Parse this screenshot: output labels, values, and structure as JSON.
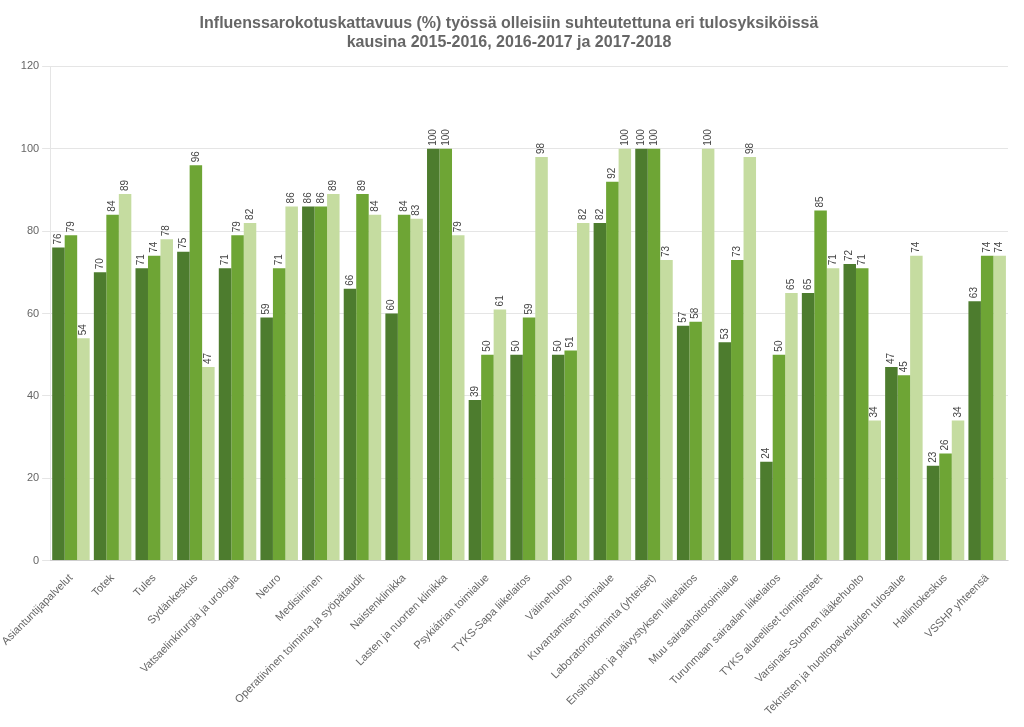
{
  "chart_data": {
    "type": "bar",
    "title": "Influenssarokotuskattavuus (%) työssä olleisiin suhteutettuna eri tulosyksiköissä\nkausina 2015-2016, 2016-2017 ja 2017-2018",
    "categories": [
      "Asiantuntijapalvelut",
      "Totek",
      "Tules",
      "Sydänkeskus",
      "Vatsaelinkirurgia ja urologia",
      "Neuro",
      "Medisiininen",
      "Operatiivinen toiminta ja syöpätaudit",
      "Naistenklinikka",
      "Lasten ja nuorten klinikka",
      "Psykiátrian toimialue",
      "TYKS-Sapa liikelaitos",
      "Välinehuolto",
      "Kuvantamisen toimialue",
      "Laboratoriotoiminta (yhteiset)",
      "Ensihoidon ja päivystyksen liikelaitos",
      "Muu sairaahoitotoimialue",
      "Turunmaan sairaalan liikelaitos",
      "TYKS alueelliset toimipisteet",
      "Varsinais-Suomen lääkehuolto",
      "Teknisten ja huoltopalveluiden tulosalue",
      "Hallintokeskus",
      "VSSHP yhteensä"
    ],
    "series": [
      {
        "color": "#4d7c2e",
        "values": [
          76,
          70,
          71,
          75,
          71,
          59,
          86,
          66,
          60,
          100,
          39,
          50,
          50,
          82,
          100,
          57,
          53,
          24,
          65,
          72,
          47,
          23,
          63
        ]
      },
      {
        "color": "#6ea535",
        "values": [
          79,
          84,
          74,
          96,
          79,
          71,
          86,
          89,
          84,
          100,
          50,
          59,
          51,
          92,
          100,
          58,
          73,
          50,
          85,
          71,
          45,
          26,
          74
        ]
      },
      {
        "color": "#c5dcA0",
        "values": [
          54,
          89,
          78,
          47,
          82,
          86,
          89,
          84,
          83,
          79,
          61,
          98,
          82,
          100,
          73,
          100,
          98,
          65,
          71,
          34,
          74,
          34,
          74
        ]
      }
    ],
    "ylim": [
      0,
      120
    ],
    "yticks": [
      0,
      20,
      40,
      60,
      80,
      100,
      120
    ],
    "grid": true,
    "data_labels": true
  }
}
